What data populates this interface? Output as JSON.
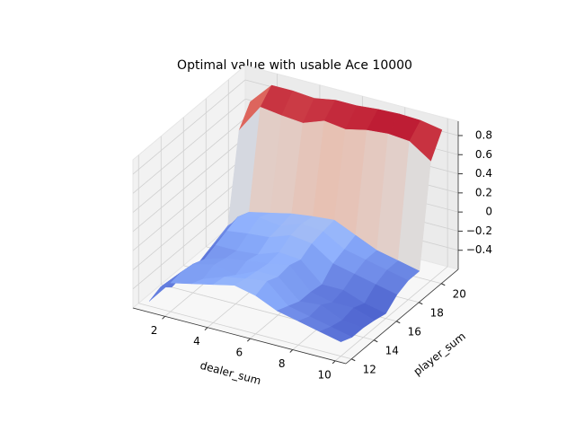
{
  "chart_data": {
    "type": "surface",
    "title": "Optimal value with usable Ace 10000",
    "x_label": "dealer_sum",
    "y_label": "player_sum",
    "x": [
      1,
      2,
      3,
      4,
      5,
      6,
      7,
      8,
      9,
      10
    ],
    "y": [
      12,
      13,
      14,
      15,
      16,
      17,
      18,
      19,
      20,
      21
    ],
    "z": [
      [
        -0.55,
        -0.3,
        -0.25,
        -0.2,
        -0.15,
        -0.2,
        -0.3,
        -0.35,
        -0.4,
        -0.45
      ],
      [
        -0.5,
        -0.28,
        -0.3,
        -0.22,
        -0.18,
        -0.15,
        -0.35,
        -0.4,
        -0.45,
        -0.5
      ],
      [
        -0.6,
        -0.3,
        -0.25,
        -0.3,
        -0.2,
        -0.2,
        -0.4,
        -0.38,
        -0.48,
        -0.5
      ],
      [
        -0.55,
        -0.35,
        -0.28,
        -0.25,
        -0.22,
        -0.18,
        -0.4,
        -0.45,
        -0.45,
        -0.52
      ],
      [
        -0.6,
        -0.3,
        -0.3,
        -0.28,
        -0.2,
        -0.22,
        -0.42,
        -0.42,
        -0.5,
        -0.55
      ],
      [
        -0.55,
        -0.25,
        -0.22,
        -0.2,
        -0.12,
        -0.15,
        -0.3,
        -0.35,
        -0.4,
        -0.45
      ],
      [
        -0.5,
        -0.2,
        -0.15,
        -0.18,
        -0.1,
        -0.12,
        -0.25,
        -0.3,
        -0.35,
        -0.4
      ],
      [
        -0.45,
        -0.25,
        -0.2,
        -0.15,
        -0.12,
        -0.1,
        -0.2,
        -0.3,
        -0.35,
        -0.4
      ],
      [
        0.45,
        0.75,
        0.72,
        0.7,
        0.78,
        0.75,
        0.8,
        0.82,
        0.8,
        0.65
      ],
      [
        0.65,
        0.88,
        0.88,
        0.86,
        0.9,
        0.9,
        0.92,
        0.93,
        0.92,
        0.88
      ]
    ],
    "colormap": "coolwarm",
    "xlim": [
      0.5,
      10.5
    ],
    "ylim": [
      11.5,
      21.5
    ],
    "zlim": [
      -0.6,
      0.95
    ],
    "xticks": [
      2,
      4,
      6,
      8,
      10
    ],
    "yticks": [
      12,
      14,
      16,
      18,
      20
    ],
    "zticks": [
      {
        "value": -0.4,
        "label": "−0.4"
      },
      {
        "value": -0.2,
        "label": "−0.2"
      },
      0.0,
      0.2,
      0.4,
      0.6,
      0.8
    ],
    "grid": true
  }
}
